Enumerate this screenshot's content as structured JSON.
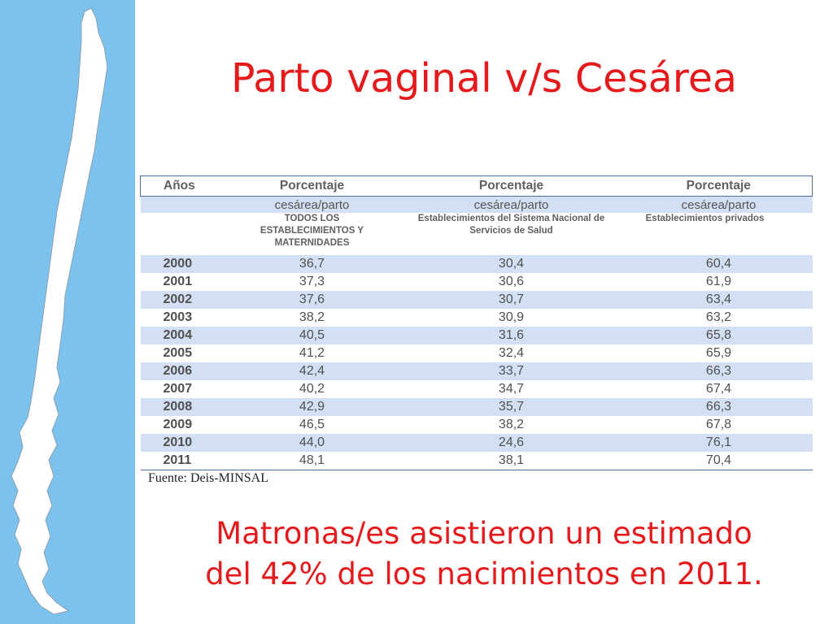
{
  "slide": {
    "title": "Parto vaginal v/s Cesárea",
    "source": "Fuente: Deis-MINSAL",
    "note_line1": "Matronas/es asistieron un estimado",
    "note_line2": "del 42% de los nacimientos en 2011."
  },
  "table": {
    "headers": [
      "Años",
      "Porcentaje",
      "Porcentaje",
      "Porcentaje"
    ],
    "subheaders": [
      "",
      "cesárea/parto",
      "cesárea/parto",
      "cesárea/parto"
    ],
    "descriptions": [
      "",
      "TODOS LOS ESTABLECIMIENTOS Y MATERNIDADES",
      "Establecimientos del Sistema Nacional de Servicios de Salud",
      "Establecimientos privados"
    ],
    "rows": [
      [
        "2000",
        "36,7",
        "30,4",
        "60,4"
      ],
      [
        "2001",
        "37,3",
        "30,6",
        "61,9"
      ],
      [
        "2002",
        "37,6",
        "30,7",
        "63,4"
      ],
      [
        "2003",
        "38,2",
        "30,9",
        "63,2"
      ],
      [
        "2004",
        "40,5",
        "31,6",
        "65,8"
      ],
      [
        "2005",
        "41,2",
        "32,4",
        "65,9"
      ],
      [
        "2006",
        "42,4",
        "33,7",
        "66,3"
      ],
      [
        "2007",
        "40,2",
        "34,7",
        "67,4"
      ],
      [
        "2008",
        "42,9",
        "35,7",
        "66,3"
      ],
      [
        "2009",
        "46,5",
        "38,2",
        "67,8"
      ],
      [
        "2010",
        "44,0",
        "24,6",
        "76,1"
      ],
      [
        "2011",
        "48,1",
        "38,1",
        "70,4"
      ]
    ]
  },
  "colors": {
    "title": "#e41a1c",
    "sidebar": "#7cc2ef",
    "row_shade": "#d3e0f3",
    "border": "#4a6fa5"
  }
}
